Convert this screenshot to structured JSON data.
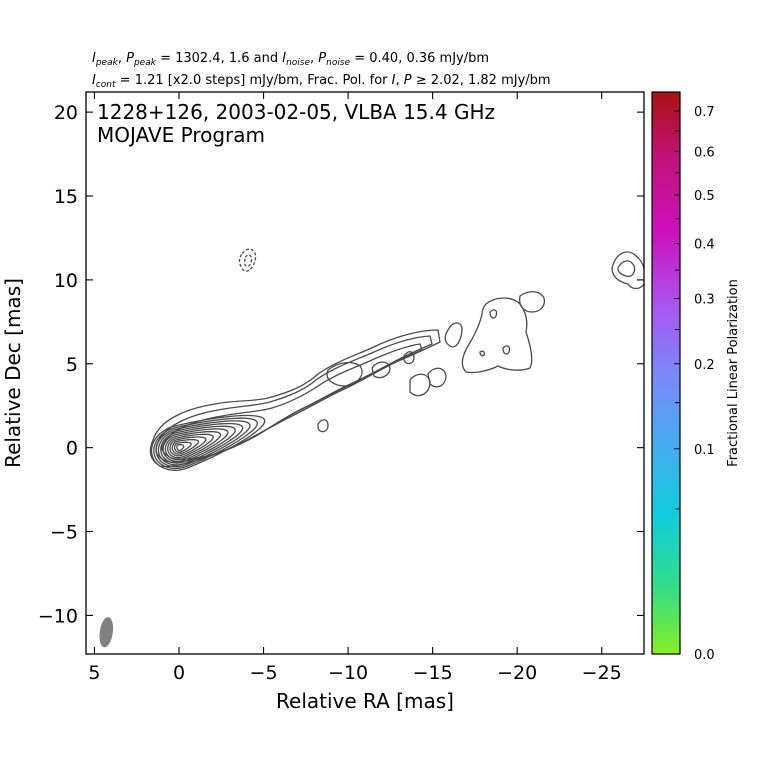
{
  "header": {
    "line1": {
      "ipeak_sym": "I",
      "ipeak_sub": "peak",
      "ppeak_sym": "P",
      "ppeak_sub": "peak",
      "peak_vals": "= 1302.4, 1.6 and",
      "inoise_sym": "I",
      "inoise_sub": "noise",
      "pnoise_sym": "P",
      "pnoise_sub": "noise",
      "noise_vals": "= 0.40, 0.36 mJy/bm"
    },
    "line2": {
      "icont_sym": "I",
      "icont_sub": "cont",
      "cont_text": "= 1.21 [x2.0 steps] mJy/bm, Frac. Pol. for",
      "i_sym": "I",
      "p_sym": "P",
      "cut_text": "≥ 2.02, 1.82 mJy/bm"
    }
  },
  "chart_data": {
    "type": "contour",
    "title_line1": "1228+126, 2003-02-05, VLBA 15.4 GHz",
    "title_line2": "MOJAVE Program",
    "xlabel": "Relative RA [mas]",
    "ylabel": "Relative Dec [mas]",
    "xlim": [
      5.5,
      -27.5
    ],
    "ylim": [
      -12.3,
      21.2
    ],
    "xticks": [
      5,
      0,
      -5,
      -10,
      -15,
      -20,
      -25
    ],
    "xtick_labels": [
      "5",
      "0",
      "−5",
      "−10",
      "−15",
      "−20",
      "−25"
    ],
    "yticks": [
      20,
      15,
      10,
      5,
      0,
      -5,
      -10
    ],
    "ytick_labels": [
      "20",
      "15",
      "10",
      "5",
      "0",
      "−5",
      "−10"
    ],
    "core_position": [
      0,
      0
    ],
    "beam": {
      "ra": 4.3,
      "dec": -11.0,
      "major_mas": 1.3,
      "minor_mas": 0.55
    },
    "negative_contour": {
      "ra": -4.1,
      "dec": 11.1
    },
    "colorbar": {
      "label": "Fractional Linear Polarization",
      "range": [
        0.0,
        0.75
      ],
      "labeled_ticks": [
        0.0,
        0.1,
        0.2,
        0.3,
        0.4,
        0.5,
        0.6,
        0.7
      ],
      "tick_labels": [
        "0.0",
        "0.1",
        "0.2",
        "0.3",
        "0.4",
        "0.5",
        "0.6",
        "0.7"
      ],
      "minor_ticks": [
        0.05,
        0.15,
        0.25,
        0.35,
        0.45,
        0.55,
        0.65
      ],
      "colors": [
        "#88ee22",
        "#33dd88",
        "#11ccdd",
        "#4aaaf0",
        "#7b88f8",
        "#aa55f0",
        "#cc11bb",
        "#c0137a",
        "#aa1111"
      ]
    }
  }
}
